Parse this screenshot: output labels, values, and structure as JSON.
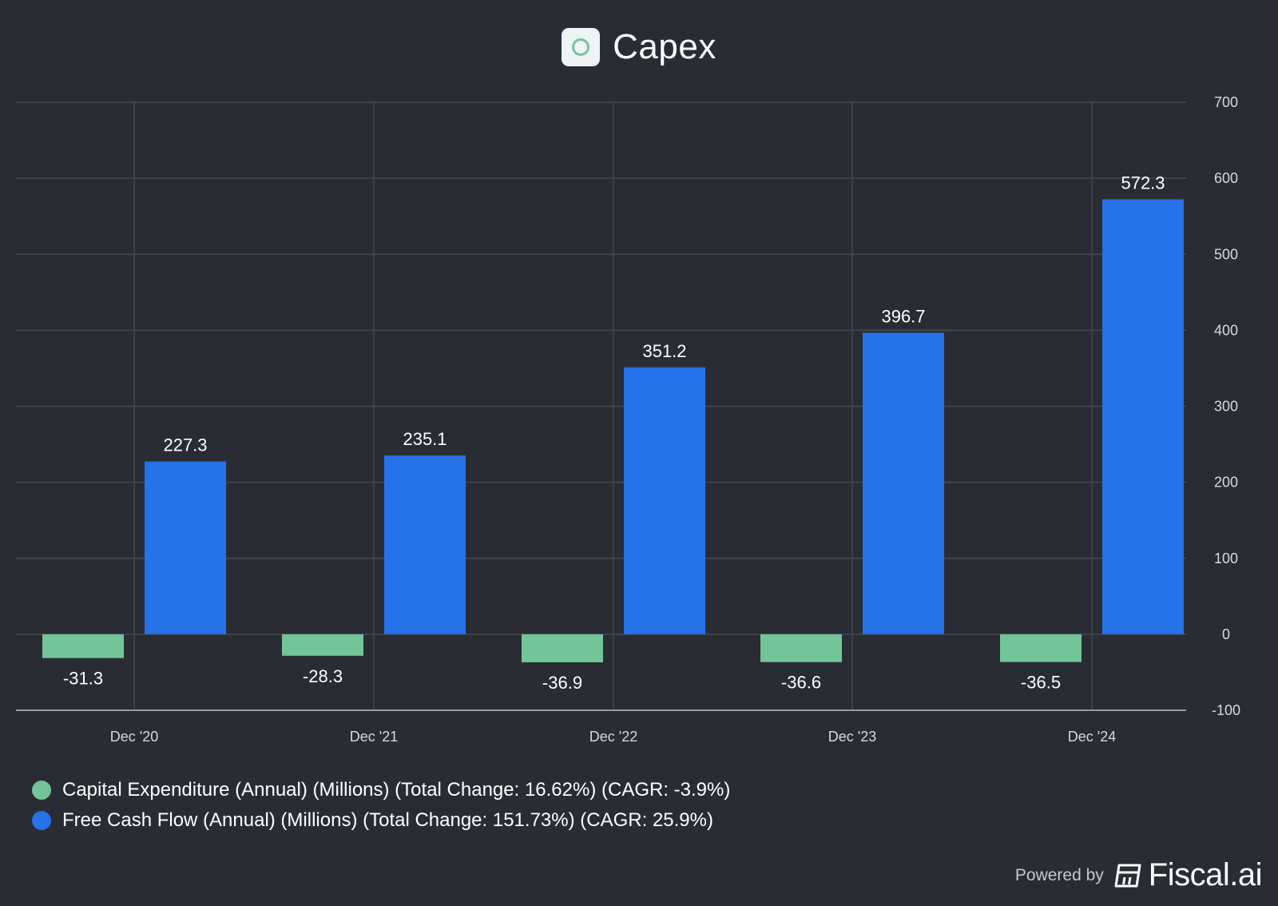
{
  "header": {
    "title": "Capex"
  },
  "chart_data": {
    "type": "bar",
    "categories": [
      "Dec '20",
      "Dec '21",
      "Dec '22",
      "Dec '23",
      "Dec '24"
    ],
    "series": [
      {
        "name": "Capital Expenditure (Annual) (Millions) (Total Change: 16.62%) (CAGR: -3.9%)",
        "values": [
          -31.3,
          -28.3,
          -36.9,
          -36.6,
          -36.5
        ],
        "color": "#73c599"
      },
      {
        "name": "Free Cash Flow (Annual) (Millions) (Total Change: 151.73%) (CAGR: 25.9%)",
        "values": [
          227.3,
          235.1,
          351.2,
          396.7,
          572.3
        ],
        "color": "#2672e8"
      }
    ],
    "y_ticks": [
      700,
      600,
      500,
      400,
      300,
      200,
      100,
      0,
      -100
    ],
    "ylim": [
      -100,
      700
    ],
    "grid": true,
    "legend_position": "bottom-left",
    "y_axis_side": "right"
  },
  "footer": {
    "powered_by": "Powered by",
    "brand": "Fiscal.ai"
  },
  "colors": {
    "background": "#2a2c34",
    "grid": "#464852",
    "axis": "#9a9ca3"
  }
}
